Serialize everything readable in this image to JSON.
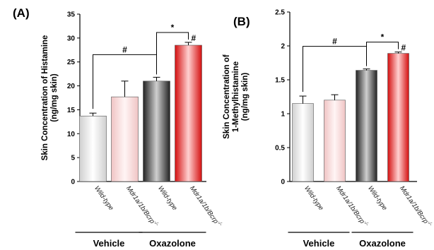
{
  "chart_data": [
    {
      "type": "bar",
      "panel_label": "(A)",
      "ylabel_lines": [
        "Skin Concentration of Histamine",
        "(ng/mg skin)"
      ],
      "ylim": [
        0,
        35
      ],
      "yticks": [
        "0",
        "5",
        "10",
        "15",
        "20",
        "25",
        "30",
        "35"
      ],
      "ytick_values": [
        0,
        5,
        10,
        15,
        20,
        25,
        30,
        35
      ],
      "categories": [
        "Wild-type",
        "Mdr1a/1b/Bcrp",
        "Wild-type",
        "Mdr1a/1b/Bcrp"
      ],
      "category_superscripts": [
        "",
        "-/-",
        "",
        "-/-"
      ],
      "values": [
        13.7,
        17.7,
        21.0,
        28.5
      ],
      "errors": [
        0.6,
        3.3,
        0.8,
        0.6
      ],
      "bar_colors": [
        "#f2f2f2",
        "#f7dada",
        "#1a1a1a",
        "#e01e1e"
      ],
      "groups": [
        {
          "label": "Vehicle",
          "categories": [
            0,
            1
          ]
        },
        {
          "label": "Oxazolone",
          "categories": [
            2,
            3
          ]
        }
      ],
      "brackets": [
        {
          "from": 0,
          "to": 2,
          "symbol": "#"
        },
        {
          "from": 2,
          "to": 3,
          "symbol": "*"
        }
      ],
      "bar_annotations": [
        {
          "bar": 3,
          "symbol": "#"
        }
      ]
    },
    {
      "type": "bar",
      "panel_label": "(B)",
      "ylabel_lines": [
        "Skin Concentration of",
        "1-Methylhistamine",
        "(ng/mg skin)"
      ],
      "ylim": [
        0,
        2.5
      ],
      "yticks": [
        "0",
        "0.5",
        "1",
        "1.5",
        "2",
        "2.5"
      ],
      "ytick_values": [
        0,
        0.5,
        1,
        1.5,
        2,
        2.5
      ],
      "categories": [
        "Wild-type",
        "Mdr1a/1b/Bcrp",
        "Wild-type",
        "Mdr1a/1b/Bcrp"
      ],
      "category_superscripts": [
        "",
        "-/-",
        "",
        "-/-"
      ],
      "values": [
        1.15,
        1.2,
        1.64,
        1.89
      ],
      "errors": [
        0.11,
        0.08,
        0.02,
        0.02
      ],
      "bar_colors": [
        "#f2f2f2",
        "#f7dada",
        "#1a1a1a",
        "#e01e1e"
      ],
      "groups": [
        {
          "label": "Vehicle",
          "categories": [
            0,
            1
          ]
        },
        {
          "label": "Oxazolone",
          "categories": [
            2,
            3
          ]
        }
      ],
      "brackets": [
        {
          "from": 0,
          "to": 2,
          "symbol": "#"
        },
        {
          "from": 2,
          "to": 3,
          "symbol": "*"
        }
      ],
      "bar_annotations": [
        {
          "bar": 3,
          "symbol": "#"
        }
      ]
    }
  ]
}
